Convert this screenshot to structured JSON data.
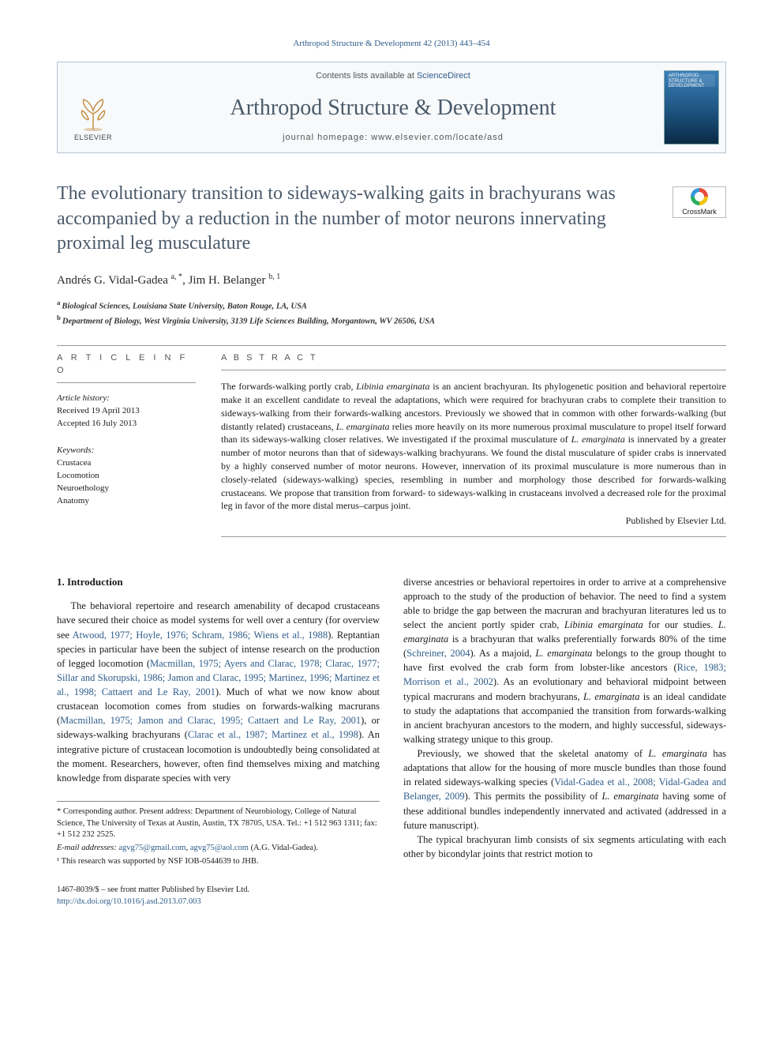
{
  "citation": "Arthropod Structure & Development 42 (2013) 443–454",
  "header": {
    "contents_prefix": "Contents lists available at ",
    "contents_link": "ScienceDirect",
    "journal_name": "Arthropod Structure & Development",
    "homepage_prefix": "journal homepage: ",
    "homepage_url": "www.elsevier.com/locate/asd",
    "publisher_label": "ELSEVIER",
    "cover_label": "ARTHROPOD STRUCTURE & DEVELOPMENT"
  },
  "crossmark_label": "CrossMark",
  "title": "The evolutionary transition to sideways-walking gaits in brachyurans was accompanied by a reduction in the number of motor neurons innervating proximal leg musculature",
  "authors_html": "Andrés G. Vidal-Gadea <sup>a, *</sup>, Jim H. Belanger <sup>b, 1</sup>",
  "affiliations": [
    {
      "sup": "a",
      "text": "Biological Sciences, Louisiana State University, Baton Rouge, LA, USA"
    },
    {
      "sup": "b",
      "text": "Department of Biology, West Virginia University, 3139 Life Sciences Building, Morgantown, WV 26506, USA"
    }
  ],
  "article_info": {
    "heading": "A R T I C L E   I N F O",
    "history_label": "Article history:",
    "received": "Received 19 April 2013",
    "accepted": "Accepted 16 July 2013",
    "keywords_label": "Keywords:",
    "keywords": [
      "Crustacea",
      "Locomotion",
      "Neuroethology",
      "Anatomy"
    ]
  },
  "abstract": {
    "heading": "A B S T R A C T",
    "text": "The forwards-walking portly crab, Libinia emarginata is an ancient brachyuran. Its phylogenetic position and behavioral repertoire make it an excellent candidate to reveal the adaptations, which were required for brachyuran crabs to complete their transition to sideways-walking from their forwards-walking ancestors. Previously we showed that in common with other forwards-walking (but distantly related) crustaceans, L. emarginata relies more heavily on its more numerous proximal musculature to propel itself forward than its sideways-walking closer relatives. We investigated if the proximal musculature of L. emarginata is innervated by a greater number of motor neurons than that of sideways-walking brachyurans. We found the distal musculature of spider crabs is innervated by a highly conserved number of motor neurons. However, innervation of its proximal musculature is more numerous than in closely-related (sideways-walking) species, resembling in number and morphology those described for forwards-walking crustaceans. We propose that transition from forward- to sideways-walking in crustaceans involved a decreased role for the proximal leg in favor of the more distal merus–carpus joint.",
    "publisher": "Published by Elsevier Ltd."
  },
  "body": {
    "section_heading": "1. Introduction",
    "p1a": "The behavioral repertoire and research amenability of decapod crustaceans have secured their choice as model systems for well over a century (for overview see ",
    "p1_cite1": "Atwood, 1977; Hoyle, 1976; Schram, 1986; Wiens et al., 1988",
    "p1b": "). Reptantian species in particular have been the subject of intense research on the production of legged locomotion (",
    "p1_cite2": "Macmillan, 1975; Ayers and Clarac, 1978; Clarac, 1977; Sillar and Skorupski, 1986; Jamon and Clarac, 1995; Martinez, 1996; Martinez et al., 1998; Cattaert and Le Ray, 2001",
    "p1c": "). Much of what we now know about crustacean locomotion comes from studies on forwards-walking macrurans (",
    "p1_cite3": "Macmillan, 1975; Jamon and Clarac, 1995; Cattaert and Le Ray, 2001",
    "p1d": "), or sideways-walking brachyurans (",
    "p1_cite4": "Clarac et al., 1987; Martinez et al., 1998",
    "p1e": "). An integrative picture of crustacean locomotion is undoubtedly being consolidated at the moment. Researchers, however, often find themselves mixing and matching knowledge from disparate species with very",
    "p2a": "diverse ancestries or behavioral repertoires in order to arrive at a comprehensive approach to the study of the production of behavior. The need to find a system able to bridge the gap between the macruran and brachyuran literatures led us to select the ancient portly spider crab, ",
    "p2_em1": "Libinia emarginata",
    "p2b": " for our studies. ",
    "p2_em2": "L. emarginata",
    "p2c": " is a brachyuran that walks preferentially forwards 80% of the time (",
    "p2_cite1": "Schreiner, 2004",
    "p2d": "). As a majoid, ",
    "p2_em3": "L. emarginata",
    "p2e": " belongs to the group thought to have first evolved the crab form from lobster-like ancestors (",
    "p2_cite2": "Rice, 1983; Morrison et al., 2002",
    "p2f": "). As an evolutionary and behavioral midpoint between typical macrurans and modern brachyurans, ",
    "p2_em4": "L. emarginata",
    "p2g": " is an ideal candidate to study the adaptations that accompanied the transition from forwards-walking in ancient brachyuran ancestors to the modern, and highly successful, sideways-walking strategy unique to this group.",
    "p3a": "Previously, we showed that the skeletal anatomy of ",
    "p3_em1": "L. emarginata",
    "p3b": " has adaptations that allow for the housing of more muscle bundles than those found in related sideways-walking species (",
    "p3_cite1": "Vidal-Gadea et al., 2008; Vidal-Gadea and Belanger, 2009",
    "p3c": "). This permits the possibility of ",
    "p3_em2": "L. emarginata",
    "p3d": " having some of these additional bundles independently innervated and activated (addressed in a future manuscript).",
    "p4": "The typical brachyuran limb consists of six segments articulating with each other by bicondylar joints that restrict motion to"
  },
  "footnotes": {
    "corr": "* Corresponding author. Present address: Department of Neurobiology, College of Natural Science, The University of Texas at Austin, Austin, TX 78705, USA. Tel.: +1 512 963 1311; fax: +1 512 232 2525.",
    "email_label": "E-mail addresses:",
    "email1": "agvg75@gmail.com",
    "email2": "agvg75@aol.com",
    "email_tail": " (A.G. Vidal-Gadea).",
    "note1": "¹ This research was supported by NSF IOB-0544639 to JHB."
  },
  "bottom": {
    "line1": "1467-8039/$ – see front matter Published by Elsevier Ltd.",
    "doi": "http://dx.doi.org/10.1016/j.asd.2013.07.003"
  },
  "colors": {
    "link": "#2e5c8a",
    "heading_gray": "#4a5a6a",
    "rule": "#999999"
  }
}
